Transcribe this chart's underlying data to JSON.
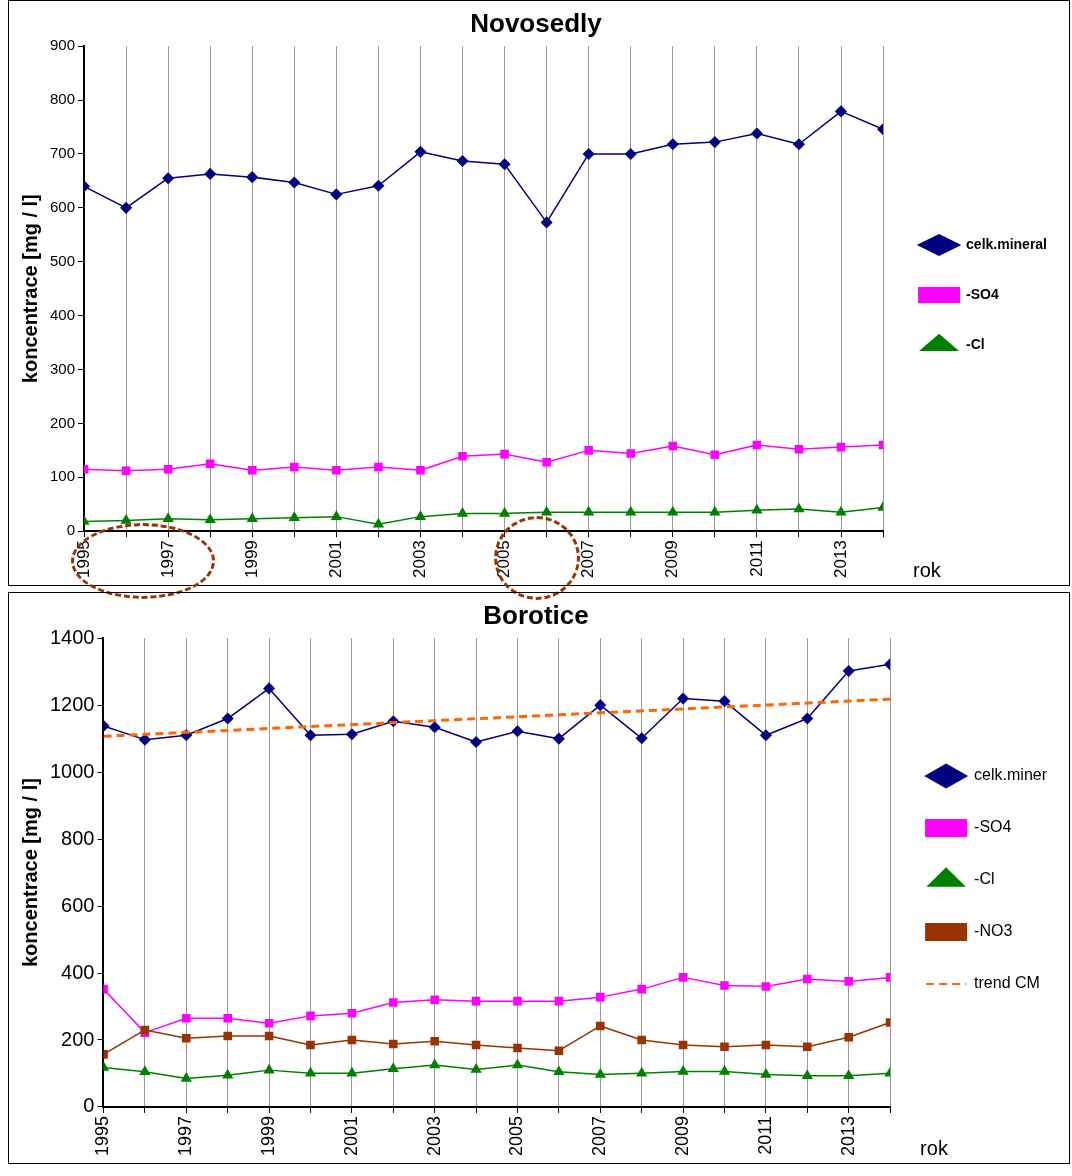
{
  "chart_data": [
    {
      "type": "line",
      "title": "Novosedly",
      "ylabel": "koncentrace [mg / l]",
      "xlabel": "rok",
      "x": [
        1995,
        1996,
        1997,
        1998,
        1999,
        2000,
        2001,
        2002,
        2003,
        2004,
        2005,
        2006,
        2007,
        2008,
        2009,
        2010,
        2011,
        2012,
        2013,
        2014
      ],
      "xlim": [
        1995,
        2014
      ],
      "xticks": [
        1995,
        {
          "value": 1996,
          "label": null
        },
        1997,
        {
          "value": 1998,
          "label": null
        },
        1999,
        {
          "value": 2000,
          "label": null
        },
        2001,
        {
          "value": 2002,
          "label": null
        },
        2003,
        {
          "value": 2004,
          "label": null
        },
        2005,
        {
          "value": 2006,
          "label": null
        },
        2007,
        {
          "value": 2008,
          "label": null
        },
        2009,
        {
          "value": 2010,
          "label": null
        },
        2011,
        {
          "value": 2012,
          "label": null
        },
        2013,
        {
          "value": 2014,
          "label": null
        }
      ],
      "ylim": [
        0,
        900
      ],
      "yticks": [
        0,
        100,
        200,
        300,
        400,
        500,
        600,
        700,
        800,
        900
      ],
      "grid": "x",
      "legend": "right",
      "series": [
        {
          "name": "celk.mineral",
          "color": "#000080",
          "marker": "diamond",
          "values": [
            640,
            600,
            655,
            663,
            657,
            647,
            625,
            641,
            704,
            687,
            681,
            573,
            700,
            700,
            718,
            722,
            738,
            718,
            779,
            746
          ]
        },
        {
          "name": "-SO4",
          "color": "#ff00ff",
          "marker": "square",
          "values": [
            115,
            112,
            115,
            125,
            113,
            119,
            113,
            119,
            113,
            139,
            143,
            128,
            150,
            144,
            158,
            142,
            160,
            152,
            156,
            160
          ]
        },
        {
          "name": "-Cl",
          "color": "#008000",
          "marker": "triangle",
          "values": [
            18,
            20,
            23,
            21,
            23,
            25,
            27,
            13,
            27,
            33,
            33,
            35,
            35,
            35,
            35,
            35,
            39,
            41,
            35,
            44
          ]
        }
      ]
    },
    {
      "type": "line",
      "title": "Borotice",
      "ylabel": "koncentrace [mg / l]",
      "xlabel": "rok",
      "x": [
        1995,
        1996,
        1997,
        1998,
        1999,
        2000,
        2001,
        2002,
        2003,
        2004,
        2005,
        2006,
        2007,
        2008,
        2009,
        2010,
        2011,
        2012,
        2013,
        2014
      ],
      "xlim": [
        1995,
        2014
      ],
      "xticks": [
        1995,
        {
          "value": 1996,
          "label": null
        },
        1997,
        {
          "value": 1998,
          "label": null
        },
        1999,
        {
          "value": 2000,
          "label": null
        },
        2001,
        {
          "value": 2002,
          "label": null
        },
        2003,
        {
          "value": 2004,
          "label": null
        },
        2005,
        {
          "value": 2006,
          "label": null
        },
        2007,
        {
          "value": 2008,
          "label": null
        },
        2009,
        {
          "value": 2010,
          "label": null
        },
        2011,
        {
          "value": 2012,
          "label": null
        },
        2013,
        {
          "value": 2014,
          "label": null
        }
      ],
      "ylim": [
        0,
        1400
      ],
      "yticks": [
        0,
        200,
        400,
        600,
        800,
        1000,
        1200,
        1400
      ],
      "grid": "x",
      "legend": "right",
      "series": [
        {
          "name": "celk.miner",
          "color": "#000080",
          "marker": "diamond",
          "values": [
            1138,
            1097,
            1110,
            1160,
            1250,
            1110,
            1113,
            1152,
            1134,
            1090,
            1122,
            1100,
            1200,
            1101,
            1220,
            1212,
            1110,
            1160,
            1302,
            1322
          ]
        },
        {
          "name": "-SO4",
          "color": "#ff00ff",
          "marker": "square",
          "values": [
            352,
            222,
            265,
            265,
            250,
            272,
            280,
            312,
            320,
            316,
            316,
            316,
            328,
            352,
            387,
            363,
            360,
            382,
            375,
            387
          ]
        },
        {
          "name": "-Cl",
          "color": "#008000",
          "marker": "triangle",
          "values": [
            118,
            105,
            85,
            95,
            110,
            101,
            101,
            114,
            125,
            112,
            125,
            105,
            97,
            101,
            106,
            106,
            97,
            93,
            93,
            101
          ]
        },
        {
          "name": "-NO3",
          "color": "#993300",
          "marker": "square",
          "values": [
            157,
            230,
            205,
            212,
            212,
            185,
            200,
            188,
            196,
            185,
            176,
            168,
            242,
            200,
            185,
            180,
            185,
            180,
            208,
            252
          ]
        },
        {
          "name": "trend CM",
          "color": "#ff6600",
          "marker": "none",
          "line_style": "dashed",
          "x": [
            1995,
            2014
          ],
          "values": [
            1107,
            1218
          ]
        }
      ]
    }
  ]
}
